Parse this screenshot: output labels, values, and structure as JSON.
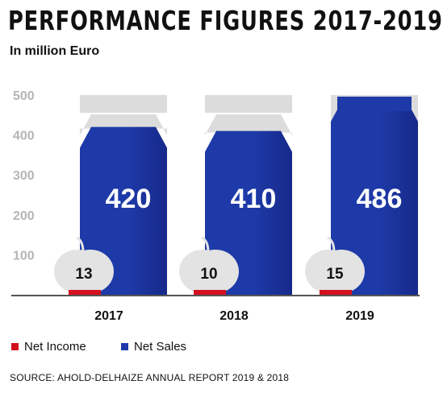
{
  "header": {
    "title": "PERFORMANCE FIGURES 2017-2019",
    "subtitle": "In million Euro"
  },
  "chart_data": {
    "type": "bar",
    "categories": [
      "2017",
      "2018",
      "2019"
    ],
    "series": [
      {
        "name": "Net Sales",
        "values": [
          420,
          410,
          486
        ]
      },
      {
        "name": "Net Income",
        "values": [
          13,
          10,
          15
        ]
      }
    ],
    "yticks": [
      "500",
      "400",
      "300",
      "200",
      "100"
    ],
    "ylim": [
      0,
      500
    ],
    "max_label": "500",
    "legend_position": "bottom-left",
    "colors": {
      "net_sales": "#1e3aa8",
      "net_sales_dark": "#17298a",
      "net_income": "#d4111e",
      "capacity": "#dcdcdc",
      "apple": "#e3e3e3",
      "axis": "#555555",
      "tick_text": "#b5b5b5"
    }
  },
  "legend": {
    "items": [
      {
        "label": "Net Income",
        "color": "#d4111e"
      },
      {
        "label": "Net Sales",
        "color": "#1e3aa8"
      }
    ]
  },
  "footer": {
    "source": "SOURCE: AHOLD-DELHAIZE ANNUAL REPORT 2019 & 2018"
  }
}
